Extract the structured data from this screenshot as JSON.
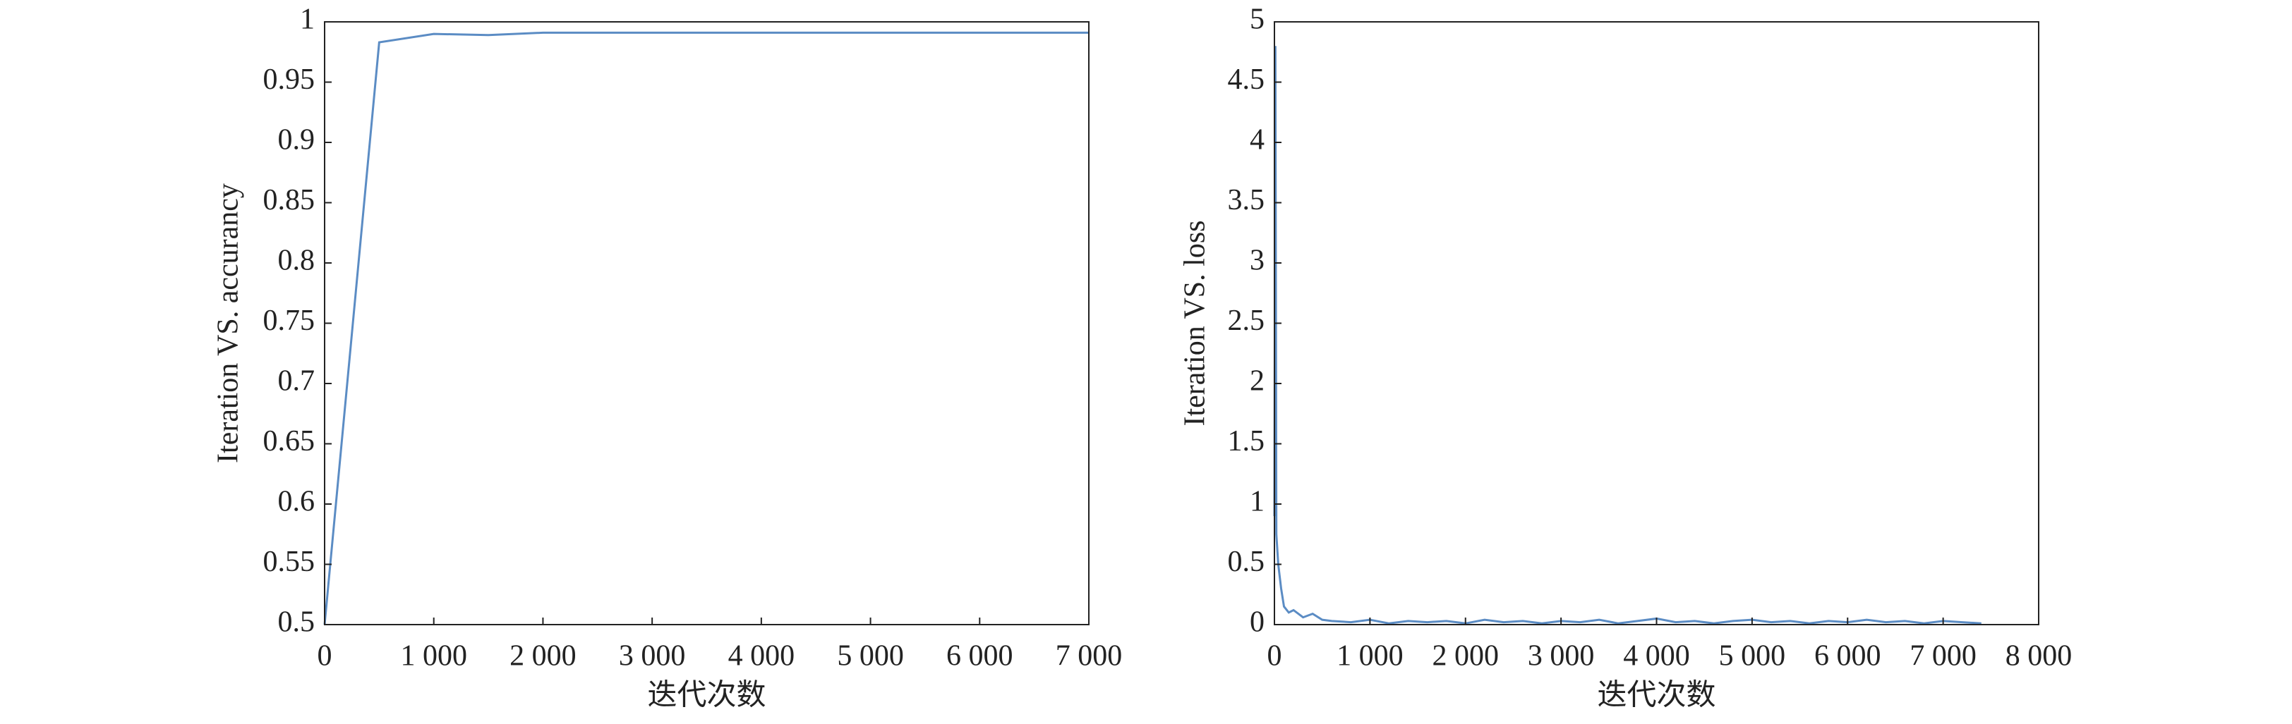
{
  "chart_data": [
    {
      "type": "line",
      "ylabel": "Iteration VS. accurancy",
      "xlabel": "迭代次数",
      "x": [
        0,
        500,
        1000,
        1500,
        2000,
        3000,
        4000,
        5000,
        6000,
        7000
      ],
      "values": [
        0.5,
        0.983,
        0.99,
        0.989,
        0.991,
        0.991,
        0.991,
        0.991,
        0.991,
        0.991
      ],
      "color": "#5b8cc4",
      "xlim": [
        0,
        7000
      ],
      "ylim": [
        0.5,
        1
      ],
      "xticks": [
        0,
        {
          "value": 1000,
          "label": "1 000"
        },
        {
          "value": 2000,
          "label": "2 000"
        },
        {
          "value": 3000,
          "label": "3 000"
        },
        {
          "value": 4000,
          "label": "4 000"
        },
        {
          "value": 5000,
          "label": "5 000"
        },
        {
          "value": 6000,
          "label": "6 000"
        },
        {
          "value": 7000,
          "label": "7 000"
        }
      ],
      "yticks": [
        0.5,
        0.55,
        0.6,
        0.65,
        0.7,
        0.75,
        0.8,
        0.85,
        0.9,
        0.95,
        1
      ]
    },
    {
      "type": "line",
      "ylabel": "Iteration VS. loss",
      "xlabel": "迭代次数",
      "x": [
        0,
        10,
        20,
        40,
        70,
        100,
        150,
        200,
        300,
        400,
        500,
        600,
        800,
        1000,
        1200,
        1400,
        1600,
        1800,
        2000,
        2200,
        2400,
        2600,
        2800,
        3000,
        3200,
        3400,
        3600,
        3800,
        4000,
        4200,
        4400,
        4600,
        4800,
        5000,
        5200,
        5400,
        5600,
        5800,
        6000,
        6200,
        6400,
        6600,
        6800,
        7000,
        7200,
        7400
      ],
      "values": [
        0.9,
        4.8,
        0.75,
        0.5,
        0.3,
        0.15,
        0.1,
        0.12,
        0.06,
        0.09,
        0.04,
        0.03,
        0.02,
        0.04,
        0.01,
        0.03,
        0.02,
        0.03,
        0.01,
        0.04,
        0.02,
        0.03,
        0.01,
        0.03,
        0.02,
        0.04,
        0.01,
        0.03,
        0.05,
        0.02,
        0.03,
        0.01,
        0.03,
        0.04,
        0.02,
        0.03,
        0.01,
        0.03,
        0.02,
        0.04,
        0.02,
        0.03,
        0.01,
        0.03,
        0.02,
        0.01
      ],
      "color": "#5b8cc4",
      "xlim": [
        0,
        8000
      ],
      "ylim": [
        0,
        5
      ],
      "xticks": [
        0,
        {
          "value": 1000,
          "label": "1 000"
        },
        {
          "value": 2000,
          "label": "2 000"
        },
        {
          "value": 3000,
          "label": "3 000"
        },
        {
          "value": 4000,
          "label": "4 000"
        },
        {
          "value": 5000,
          "label": "5 000"
        },
        {
          "value": 6000,
          "label": "6 000"
        },
        {
          "value": 7000,
          "label": "7 000"
        },
        {
          "value": 8000,
          "label": "8 000"
        }
      ],
      "yticks": [
        0,
        0.5,
        1,
        1.5,
        2,
        2.5,
        3,
        3.5,
        4,
        4.5,
        5
      ]
    }
  ]
}
